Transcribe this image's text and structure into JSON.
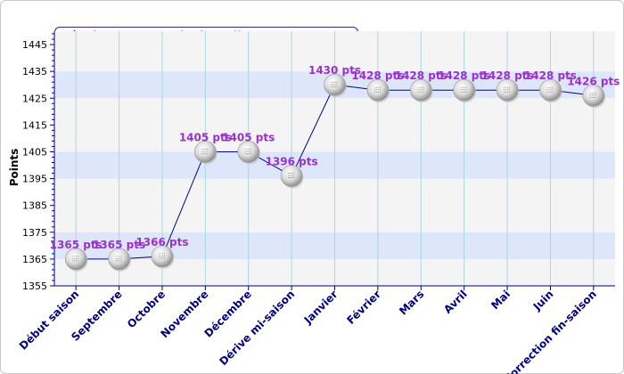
{
  "chart_data": {
    "type": "line",
    "title": "Résultats mensuels de Celia CHARBONNIER",
    "ylabel": "Points",
    "xlabel": "",
    "ylim": [
      1355,
      1450
    ],
    "yticks": [
      1355,
      1365,
      1375,
      1385,
      1395,
      1405,
      1415,
      1425,
      1435,
      1445
    ],
    "grid": true,
    "categories": [
      "Début saison",
      "Septembre",
      "Octobre",
      "Novembre",
      "Décembre",
      "Dérive mi-saison",
      "Janvier",
      "Février",
      "Mars",
      "Avril",
      "Mai",
      "Juin",
      "Correction fin-saison"
    ],
    "values": [
      1365,
      1365,
      1366,
      1405,
      1405,
      1396,
      1430,
      1428,
      1428,
      1428,
      1428,
      1428,
      1426
    ],
    "point_labels": [
      "1365 pts",
      "1365 pts",
      "1366 pts",
      "1405 pts",
      "1405 pts",
      "1396 pts",
      "1430 pts",
      "1428 pts",
      "1428 pts",
      "1428 pts",
      "1428 pts",
      "1428 pts",
      "1426 pts"
    ],
    "colors": {
      "line": "#00008b",
      "label": "#9932cc",
      "axis_label": "#000080",
      "title": "#8b0000",
      "band": "#dde6fb",
      "band_alt": "#f4f4f4",
      "vgrid": "#a8d8e0",
      "marker": "#d4d4d4"
    }
  }
}
